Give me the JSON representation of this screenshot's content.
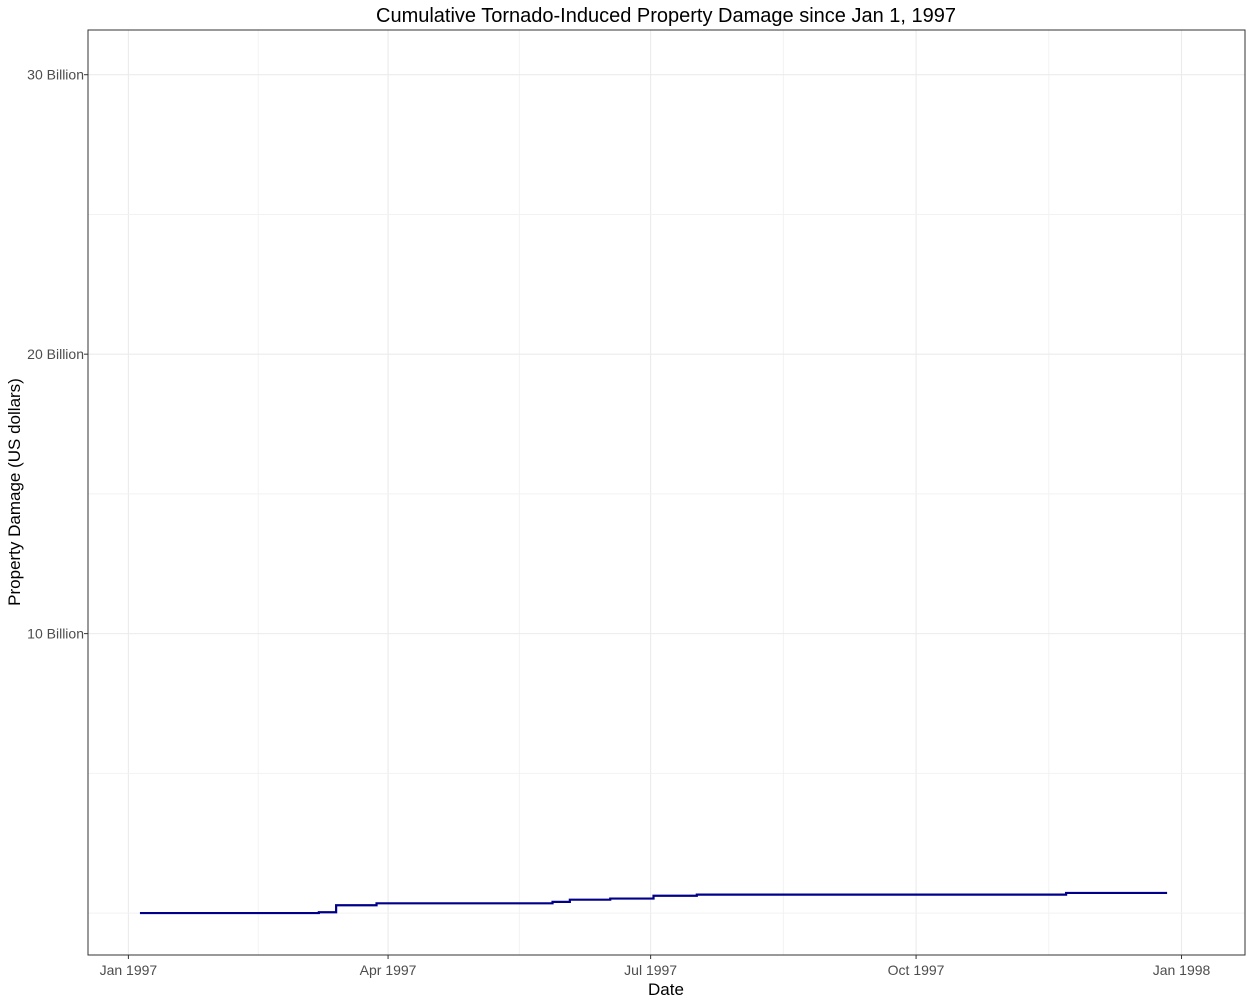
{
  "chart_data": {
    "type": "line",
    "title": "Cumulative Tornado-Induced Property Damage since Jan 1, 1997",
    "xlabel": "Date",
    "ylabel": "Property Damage (US dollars)",
    "x_ticks": [
      {
        "date": "1997-01-01",
        "label": "Jan 1997"
      },
      {
        "date": "1997-04-01",
        "label": "Apr 1997"
      },
      {
        "date": "1997-07-01",
        "label": "Jul 1997"
      },
      {
        "date": "1997-10-01",
        "label": "Oct 1997"
      },
      {
        "date": "1998-01-01",
        "label": "Jan 1998"
      }
    ],
    "y_ticks": [
      {
        "value": 10000000000,
        "label": "10 Billion"
      },
      {
        "value": 20000000000,
        "label": "20 Billion"
      },
      {
        "value": 30000000000,
        "label": "30 Billion"
      }
    ],
    "xlim": [
      "1996-12-18",
      "1998-01-23"
    ],
    "ylim": [
      -1500000000,
      31600000000
    ],
    "grid": true,
    "line_style": "step",
    "series": [
      {
        "color": "#00008b",
        "points": [
          {
            "x": "1997-01-05",
            "y": 0
          },
          {
            "x": "1997-03-08",
            "y": 30000000
          },
          {
            "x": "1997-03-14",
            "y": 280000000
          },
          {
            "x": "1997-03-28",
            "y": 350000000
          },
          {
            "x": "1997-05-28",
            "y": 400000000
          },
          {
            "x": "1997-06-03",
            "y": 480000000
          },
          {
            "x": "1997-06-17",
            "y": 520000000
          },
          {
            "x": "1997-07-02",
            "y": 620000000
          },
          {
            "x": "1997-07-17",
            "y": 660000000
          },
          {
            "x": "1997-11-22",
            "y": 720000000
          },
          {
            "x": "1997-12-27",
            "y": 720000000
          }
        ]
      }
    ]
  }
}
